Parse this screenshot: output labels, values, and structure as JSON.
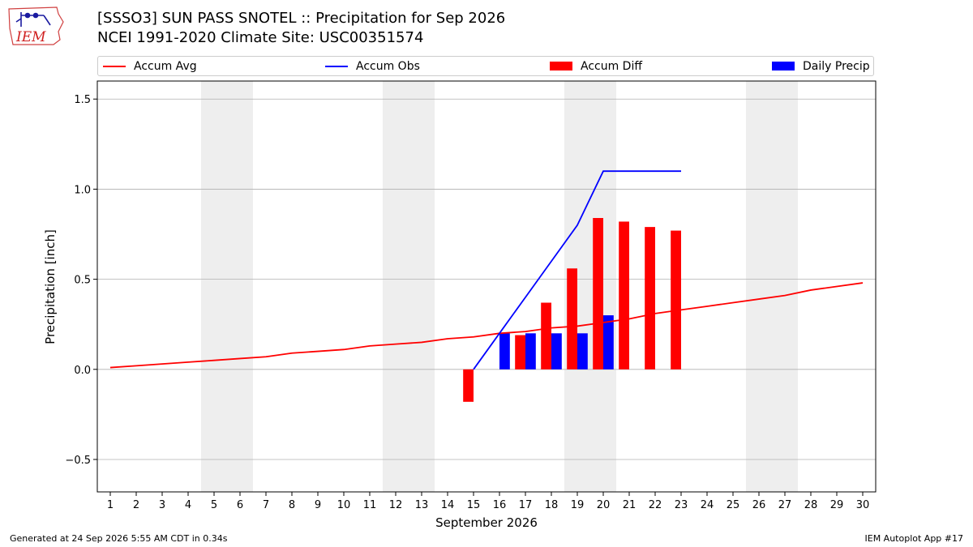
{
  "header": {
    "logo_text": "IEM",
    "title_line1": "[SSSO3] SUN PASS SNOTEL :: Precipitation for Sep 2026",
    "title_line2": "NCEI 1991-2020 Climate Site: USC00351574"
  },
  "legend": {
    "items": [
      {
        "label": "Accum Avg",
        "kind": "line",
        "color": "#ff0000"
      },
      {
        "label": "Accum Obs",
        "kind": "line",
        "color": "#0000ff"
      },
      {
        "label": "Accum Diff",
        "kind": "bar",
        "color": "#ff0000"
      },
      {
        "label": "Daily Precip",
        "kind": "bar",
        "color": "#0000ff"
      }
    ]
  },
  "chart_data": {
    "type": "bar",
    "xlabel": "September 2026",
    "ylabel": "Precipitation [inch]",
    "xlim": [
      0.5,
      30.5
    ],
    "ylim": [
      -0.68,
      1.6
    ],
    "x_ticks": [
      1,
      2,
      3,
      4,
      5,
      6,
      7,
      8,
      9,
      10,
      11,
      12,
      13,
      14,
      15,
      16,
      17,
      18,
      19,
      20,
      21,
      22,
      23,
      24,
      25,
      26,
      27,
      28,
      29,
      30
    ],
    "y_ticks": [
      -0.5,
      0.0,
      0.5,
      1.0,
      1.5
    ],
    "y_tick_labels": [
      "−0.5",
      "0.0",
      "0.5",
      "1.0",
      "1.5"
    ],
    "grid_y": true,
    "weekend_bands": [
      [
        5,
        6
      ],
      [
        12,
        13
      ],
      [
        19,
        20
      ],
      [
        26,
        27
      ]
    ],
    "colors": {
      "avg": "#ff0000",
      "obs": "#0000ff",
      "diff": "#ff0000",
      "daily": "#0000ff",
      "weekend": "#eeeeee",
      "grid": "#b0b0b0"
    },
    "accum_avg": {
      "days": [
        1,
        2,
        3,
        4,
        5,
        6,
        7,
        8,
        9,
        10,
        11,
        12,
        13,
        14,
        15,
        16,
        17,
        18,
        19,
        20,
        21,
        22,
        23,
        24,
        25,
        26,
        27,
        28,
        29,
        30
      ],
      "values": [
        0.01,
        0.02,
        0.03,
        0.04,
        0.05,
        0.06,
        0.07,
        0.09,
        0.1,
        0.11,
        0.13,
        0.14,
        0.15,
        0.17,
        0.18,
        0.2,
        0.21,
        0.23,
        0.24,
        0.26,
        0.28,
        0.31,
        0.33,
        0.35,
        0.37,
        0.39,
        0.41,
        0.44,
        0.46,
        0.48
      ]
    },
    "accum_obs": {
      "days": [
        15,
        16,
        17,
        18,
        19,
        20,
        21,
        22,
        23
      ],
      "values": [
        0.0,
        0.2,
        0.4,
        0.6,
        0.8,
        1.1,
        1.1,
        1.1,
        1.1
      ]
    },
    "accum_diff": {
      "days": [
        15,
        17,
        18,
        19,
        20,
        21,
        22,
        23
      ],
      "values": [
        -0.18,
        0.19,
        0.37,
        0.56,
        0.84,
        0.82,
        0.79,
        0.77
      ]
    },
    "daily_precip": {
      "days": [
        16,
        17,
        18,
        19,
        20
      ],
      "values": [
        0.2,
        0.2,
        0.2,
        0.2,
        0.3
      ]
    }
  },
  "footer": {
    "left": "Generated at 24 Sep 2026 5:55 AM CDT in 0.34s",
    "right": "IEM Autoplot App #17"
  }
}
